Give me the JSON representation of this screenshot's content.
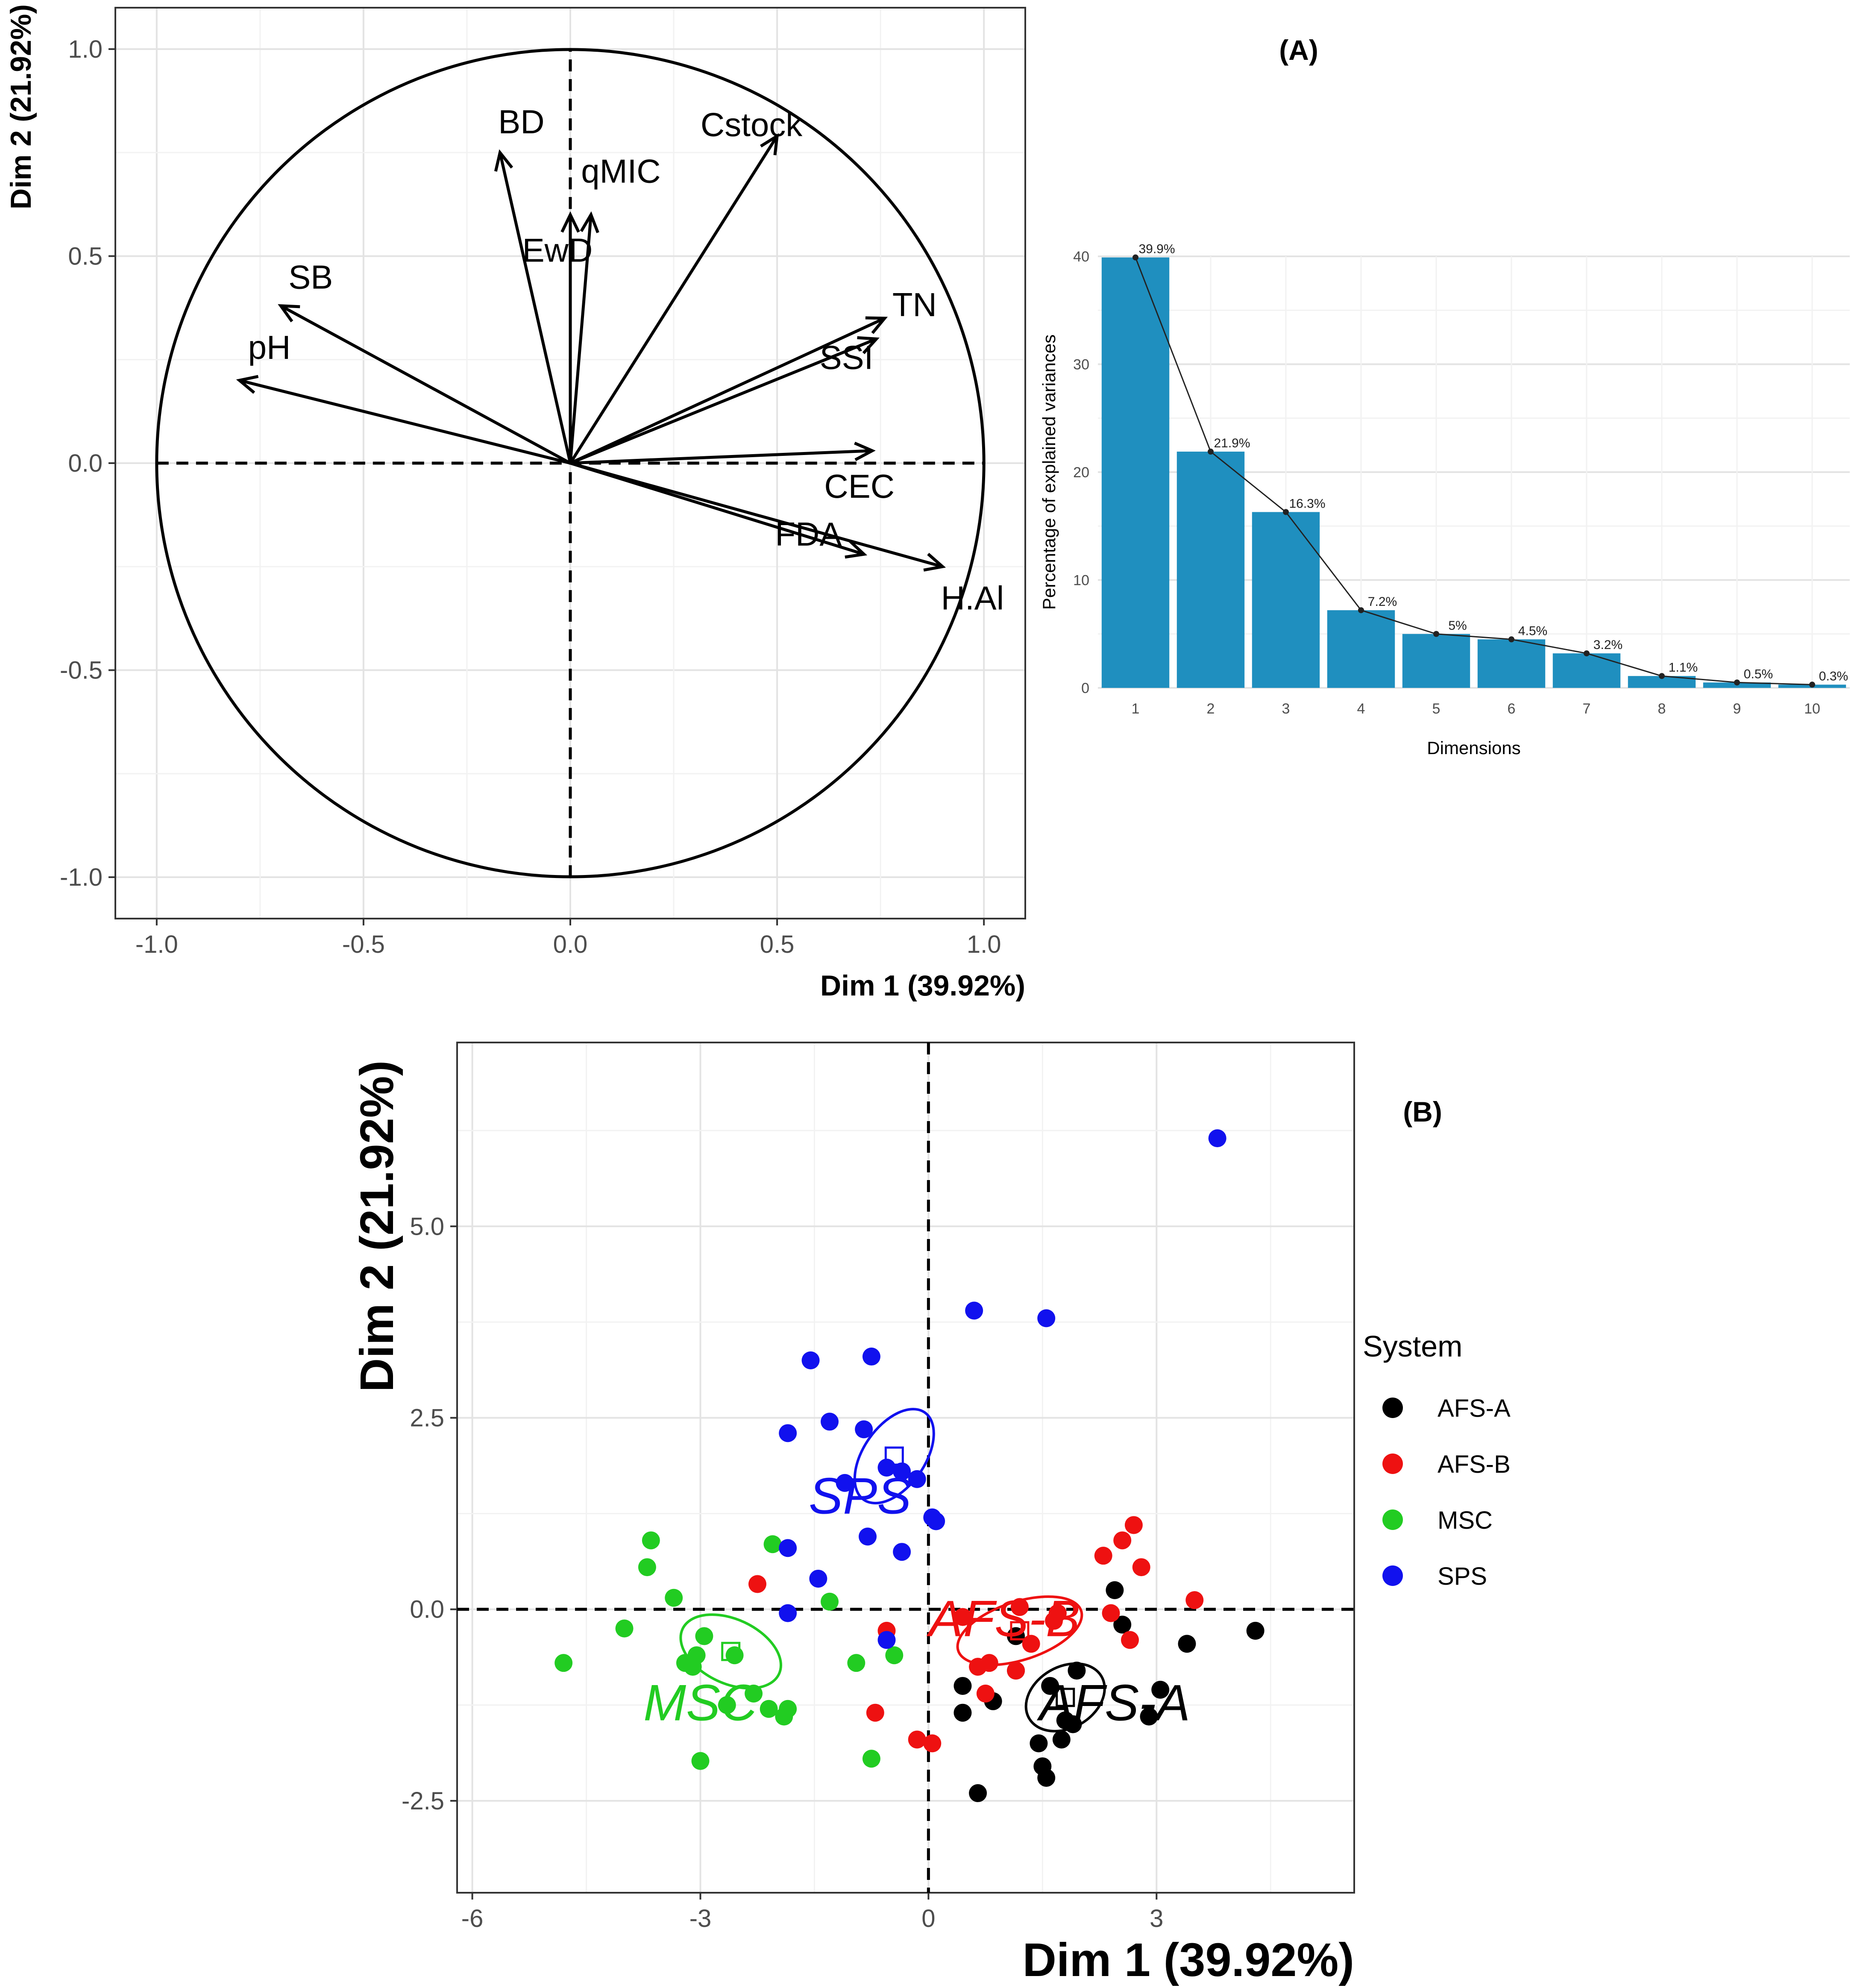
{
  "panel_labels": {
    "A": "(A)",
    "B": "(B)"
  },
  "chart_data": [
    {
      "type": "scatter",
      "name": "variables factor map",
      "xlabel": "Dim 1 (39.92%)",
      "ylabel": "Dim 2 (21.92%)",
      "xlim": [
        -1.1,
        1.1
      ],
      "ylim": [
        -1.1,
        1.1
      ],
      "xticks": [
        "-1.0",
        "-0.5",
        "0.0",
        "0.5",
        "1.0"
      ],
      "yticks": [
        "-1.0",
        "-0.5",
        "0.0",
        "0.5",
        "1.0"
      ],
      "grid": true,
      "correlation_circle": true,
      "vectors": [
        {
          "label": "BD",
          "x": -0.17,
          "y": 0.75
        },
        {
          "label": "EwD",
          "x": 0.0,
          "y": 0.6
        },
        {
          "label": "qMIC",
          "x": 0.05,
          "y": 0.6
        },
        {
          "label": "Cstock",
          "x": 0.5,
          "y": 0.79
        },
        {
          "label": "SB",
          "x": -0.7,
          "y": 0.38
        },
        {
          "label": "pH",
          "x": -0.8,
          "y": 0.2
        },
        {
          "label": "TN",
          "x": 0.76,
          "y": 0.35
        },
        {
          "label": "SSI",
          "x": 0.74,
          "y": 0.3
        },
        {
          "label": "CEC",
          "x": 0.73,
          "y": 0.03
        },
        {
          "label": "FDA",
          "x": 0.71,
          "y": -0.22
        },
        {
          "label": "H.Al",
          "x": 0.9,
          "y": -0.25
        }
      ]
    },
    {
      "type": "bar",
      "name": "scree plot",
      "xlabel": "Dimensions",
      "ylabel": "Percentage of explained variances",
      "ylim": [
        0,
        40
      ],
      "yticks": [
        "0",
        "10",
        "20",
        "30",
        "40"
      ],
      "categories": [
        "1",
        "2",
        "3",
        "4",
        "5",
        "6",
        "7",
        "8",
        "9",
        "10"
      ],
      "values": [
        39.9,
        21.9,
        16.3,
        7.2,
        5.0,
        4.5,
        3.2,
        1.1,
        0.5,
        0.3
      ],
      "value_labels": [
        "39.9%",
        "21.9%",
        "16.3%",
        "7.2%",
        "5%",
        "4.5%",
        "3.2%",
        "1.1%",
        "0.5%",
        "0.3%"
      ],
      "bar_color": "#1f8fbf",
      "line": true,
      "grid": true
    },
    {
      "type": "scatter",
      "name": "individuals factor map",
      "xlabel": "Dim 1 (39.92%)",
      "ylabel": "Dim 2 (21.92%)",
      "xlim": [
        -6.2,
        5.6
      ],
      "ylim": [
        -3.7,
        7.4
      ],
      "xticks": [
        -6,
        -3,
        0,
        3
      ],
      "yticks": [
        -2.5,
        0.0,
        2.5,
        5.0
      ],
      "ytick_labels": [
        "-2.5",
        "0.0",
        "2.5",
        "5.0"
      ],
      "grid": true,
      "legend": {
        "title": "System",
        "position": "right"
      },
      "series": [
        {
          "name": "AFS-A",
          "color": "#000000",
          "centroid": [
            1.8,
            -1.15
          ],
          "ellipse": {
            "rx": 0.55,
            "ry": 0.4,
            "angle": 30
          },
          "points": [
            [
              0.45,
              -1.0
            ],
            [
              0.45,
              -1.35
            ],
            [
              0.65,
              -2.4
            ],
            [
              0.85,
              -1.2
            ],
            [
              1.15,
              -0.35
            ],
            [
              1.15,
              -0.8
            ],
            [
              1.45,
              -1.75
            ],
            [
              1.5,
              -2.05
            ],
            [
              1.55,
              -2.2
            ],
            [
              1.75,
              -1.7
            ],
            [
              1.9,
              -1.5
            ],
            [
              1.95,
              -0.8
            ],
            [
              2.45,
              0.25
            ],
            [
              2.55,
              -0.2
            ],
            [
              2.9,
              -1.4
            ],
            [
              3.05,
              -1.05
            ],
            [
              3.4,
              -0.45
            ],
            [
              4.3,
              -0.28
            ],
            [
              1.8,
              -1.45
            ],
            [
              1.6,
              -1.0
            ]
          ]
        },
        {
          "name": "AFS-B",
          "color": "#ee1111",
          "centroid": [
            1.2,
            -0.28
          ],
          "ellipse": {
            "rx": 0.85,
            "ry": 0.38,
            "angle": 18
          },
          "points": [
            [
              -2.25,
              0.33
            ],
            [
              -0.55,
              -0.28
            ],
            [
              -0.7,
              -1.35
            ],
            [
              -0.15,
              -1.7
            ],
            [
              0.05,
              -1.75
            ],
            [
              0.45,
              -0.1
            ],
            [
              0.65,
              -0.75
            ],
            [
              0.8,
              -0.7
            ],
            [
              0.75,
              -1.1
            ],
            [
              1.15,
              -0.8
            ],
            [
              1.2,
              0.03
            ],
            [
              1.35,
              -0.45
            ],
            [
              1.65,
              -0.15
            ],
            [
              1.7,
              -0.05
            ],
            [
              2.3,
              0.7
            ],
            [
              2.55,
              0.9
            ],
            [
              2.7,
              1.1
            ],
            [
              2.4,
              -0.05
            ],
            [
              2.8,
              0.55
            ],
            [
              3.5,
              0.12
            ],
            [
              2.65,
              -0.4
            ]
          ]
        },
        {
          "name": "MSC",
          "color": "#22cc22",
          "centroid": [
            -2.6,
            -0.55
          ],
          "ellipse": {
            "rx": 0.7,
            "ry": 0.42,
            "angle": -25
          },
          "points": [
            [
              -4.8,
              -0.7
            ],
            [
              -4.0,
              -0.25
            ],
            [
              -3.7,
              0.55
            ],
            [
              -3.65,
              0.9
            ],
            [
              -3.35,
              0.15
            ],
            [
              -3.2,
              -0.7
            ],
            [
              -3.05,
              -0.6
            ],
            [
              -3.1,
              -0.75
            ],
            [
              -2.95,
              -0.35
            ],
            [
              -3.0,
              -1.98
            ],
            [
              -2.65,
              -1.25
            ],
            [
              -2.55,
              -0.6
            ],
            [
              -2.3,
              -1.1
            ],
            [
              -2.05,
              0.85
            ],
            [
              -2.1,
              -1.3
            ],
            [
              -1.9,
              -1.4
            ],
            [
              -1.85,
              -1.3
            ],
            [
              -1.3,
              0.1
            ],
            [
              -0.95,
              -0.7
            ],
            [
              -0.75,
              -1.95
            ],
            [
              -0.45,
              -0.6
            ]
          ]
        },
        {
          "name": "SPS",
          "color": "#1111ee",
          "centroid": [
            -0.45,
            2.0
          ],
          "ellipse": {
            "rx": 0.7,
            "ry": 0.4,
            "angle": 55
          },
          "points": [
            [
              -1.85,
              2.3
            ],
            [
              -1.55,
              3.25
            ],
            [
              -1.3,
              2.45
            ],
            [
              -1.1,
              1.65
            ],
            [
              -0.85,
              2.35
            ],
            [
              -0.75,
              3.3
            ],
            [
              -0.55,
              1.85
            ],
            [
              -0.35,
              1.8
            ],
            [
              -0.15,
              1.7
            ],
            [
              0.05,
              1.2
            ],
            [
              0.1,
              1.15
            ],
            [
              -0.8,
              0.95
            ],
            [
              -0.35,
              0.75
            ],
            [
              -1.45,
              0.4
            ],
            [
              -1.85,
              0.8
            ],
            [
              -1.85,
              -0.05
            ],
            [
              -0.55,
              -0.4
            ],
            [
              0.6,
              3.9
            ],
            [
              1.55,
              3.8
            ],
            [
              3.8,
              6.15
            ]
          ]
        }
      ]
    }
  ]
}
